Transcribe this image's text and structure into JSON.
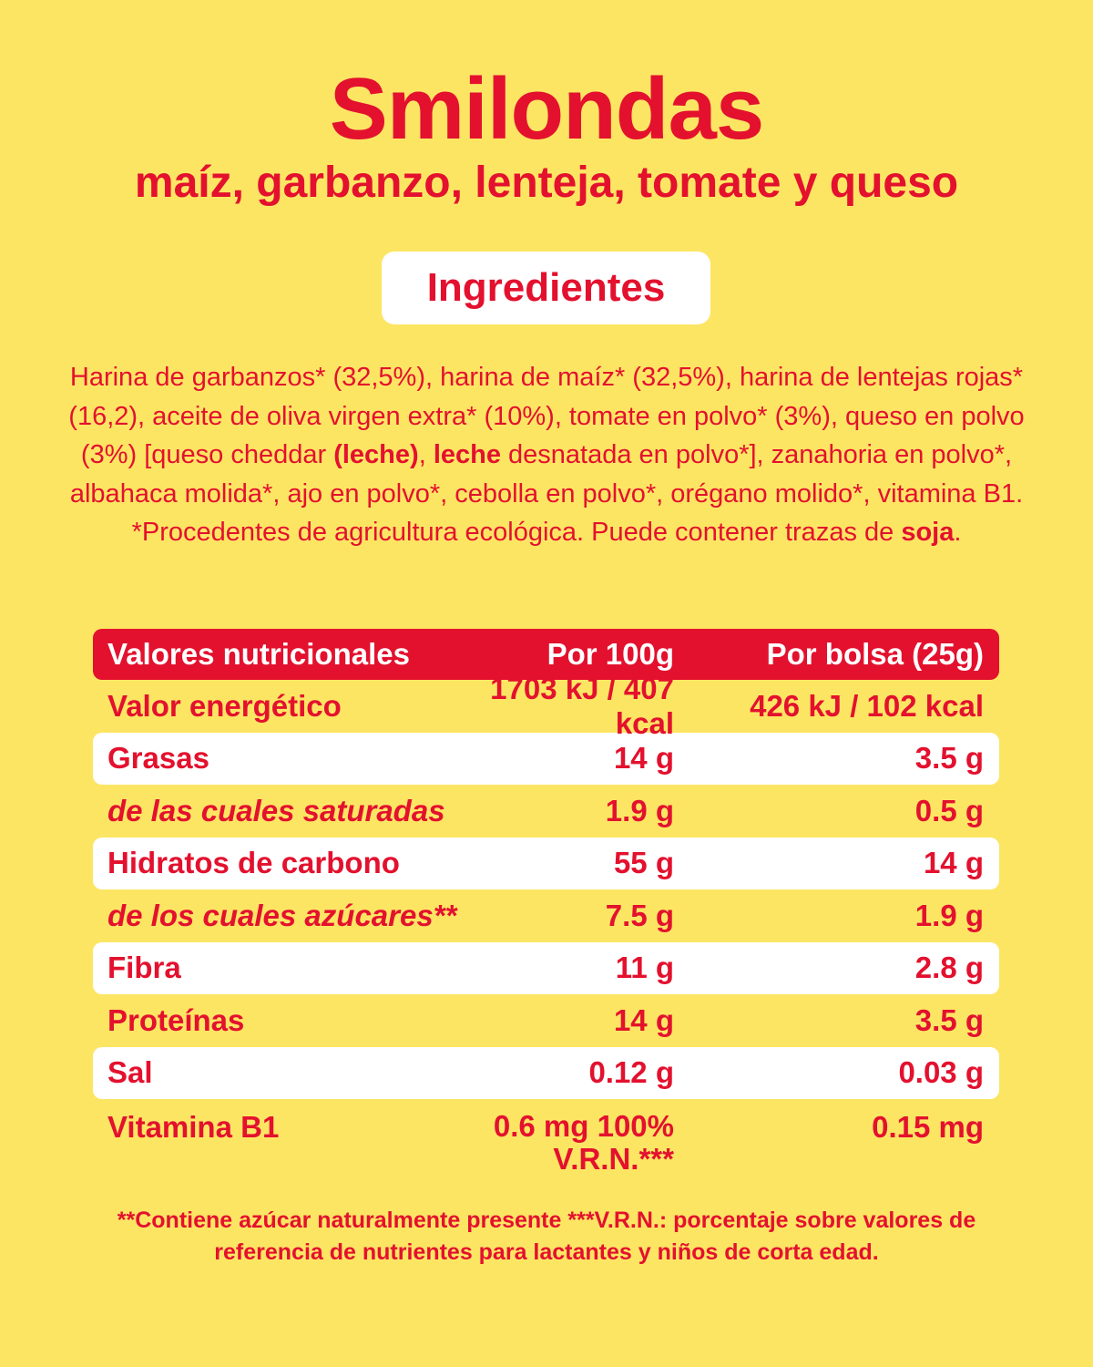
{
  "header": {
    "title": "Smilondas",
    "subtitle": "maíz, garbanzo, lenteja, tomate y queso"
  },
  "ingredients": {
    "heading": "Ingredientes",
    "segments": [
      {
        "text": "Harina de garbanzos* (32,5%), harina de maíz* (32,5%), harina de lentejas rojas* (16,2), aceite de oliva virgen extra* (10%), tomate en polvo* (3%), queso en polvo (3%) [queso cheddar "
      },
      {
        "text": "(leche)",
        "bold": true
      },
      {
        "text": ", "
      },
      {
        "text": "leche",
        "bold": true
      },
      {
        "text": " desnatada en polvo*], zanahoria en polvo*, albahaca molida*, ajo en polvo*, cebolla en polvo*, orégano molido*, vitamina B1."
      },
      {
        "text": "*Procedentes de agricultura ecológica. Puede contener trazas de ",
        "newline": true
      },
      {
        "text": "soja",
        "bold": true
      },
      {
        "text": "."
      }
    ]
  },
  "table": {
    "header": [
      "Valores nutricionales",
      "Por 100g",
      "Por bolsa (25g)"
    ],
    "rows": [
      {
        "label": "Valor energético",
        "per_100g": "1703 kJ / 407 kcal",
        "per_bag": "426 kJ / 102 kcal"
      },
      {
        "label": "Grasas",
        "per_100g": "14 g",
        "per_bag": "3.5 g"
      },
      {
        "label": "de las cuales saturadas",
        "per_100g": "1.9 g",
        "per_bag": "0.5 g",
        "italic": true
      },
      {
        "label": "Hidratos de carbono",
        "per_100g": "55 g",
        "per_bag": "14 g"
      },
      {
        "label": "de los cuales azúcares**",
        "per_100g": "7.5 g",
        "per_bag": "1.9 g",
        "italic": true
      },
      {
        "label": "Fibra",
        "per_100g": "11 g",
        "per_bag": "2.8 g"
      },
      {
        "label": "Proteínas",
        "per_100g": "14 g",
        "per_bag": "3.5 g"
      },
      {
        "label": "Sal",
        "per_100g": "0.12 g",
        "per_bag": "0.03 g"
      },
      {
        "label": "Vitamina B1",
        "per_100g": "0.6 mg 100% V.R.N.***",
        "per_bag": "0.15 mg"
      }
    ]
  },
  "footnote": "**Contiene azúcar naturalmente presente ***V.R.N.: porcentaje sobre valores de referencia de nutrientes para lactantes y niños de corta edad."
}
